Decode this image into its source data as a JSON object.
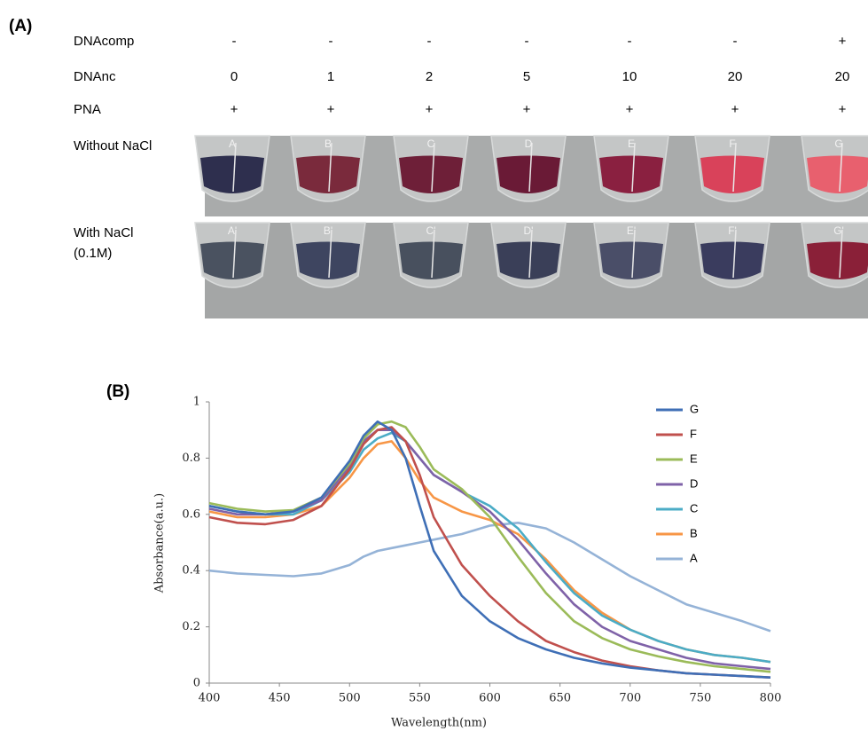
{
  "panel_a": {
    "label": "(A)",
    "rows": [
      {
        "name": "DNAcomp",
        "values": [
          "-",
          "-",
          "-",
          "-",
          "-",
          "-",
          "+"
        ]
      },
      {
        "name": "DNAnc",
        "values": [
          0,
          1,
          2,
          5,
          10,
          20,
          20
        ]
      },
      {
        "name": "PNA",
        "values": [
          "+",
          "+",
          "+",
          "+",
          "+",
          "+",
          "+"
        ]
      }
    ],
    "photo_rows": [
      {
        "lines": [
          "Without NaCl"
        ],
        "tubes": [
          "A",
          "B",
          "C",
          "D",
          "E",
          "F",
          "G"
        ],
        "colors": [
          "#2e2f4e",
          "#7a2a3c",
          "#6e1f38",
          "#6a1a36",
          "#8a2040",
          "#d9425a",
          "#e8606e"
        ]
      },
      {
        "lines": [
          "With NaCl",
          "(0.1M)"
        ],
        "tubes": [
          "A'",
          "B'",
          "C'",
          "D'",
          "E'",
          "F'",
          "G'"
        ],
        "colors": [
          "#4a5260",
          "#3e4560",
          "#48505e",
          "#3a3f58",
          "#4a4e68",
          "#3a3c5e",
          "#8a2038"
        ]
      }
    ]
  },
  "chart_data": {
    "type": "line",
    "label": "(B)",
    "xlabel": "Wavelength(nm)",
    "ylabel": "Absorbance(a.u.)",
    "x": [
      400,
      420,
      440,
      460,
      480,
      500,
      510,
      520,
      530,
      540,
      550,
      560,
      580,
      600,
      620,
      640,
      660,
      680,
      700,
      720,
      740,
      760,
      780,
      800
    ],
    "xlim": [
      400,
      800
    ],
    "xticks": [
      400,
      450,
      500,
      550,
      600,
      650,
      700,
      750,
      800
    ],
    "ylim": [
      0,
      1
    ],
    "yticks": [
      0,
      0.2,
      0.4,
      0.6,
      0.8,
      1
    ],
    "grid": false,
    "legend": "upper right",
    "series": [
      {
        "name": "G",
        "color": "#3f6fb6",
        "values": [
          0.63,
          0.61,
          0.6,
          0.61,
          0.66,
          0.79,
          0.88,
          0.93,
          0.9,
          0.8,
          0.63,
          0.47,
          0.31,
          0.22,
          0.16,
          0.12,
          0.09,
          0.07,
          0.055,
          0.045,
          0.035,
          0.03,
          0.025,
          0.02
        ]
      },
      {
        "name": "F",
        "color": "#c0504d",
        "values": [
          0.59,
          0.57,
          0.565,
          0.58,
          0.63,
          0.76,
          0.85,
          0.9,
          0.91,
          0.86,
          0.74,
          0.59,
          0.42,
          0.31,
          0.22,
          0.15,
          0.11,
          0.08,
          0.06,
          0.045,
          0.035,
          0.03,
          0.025,
          0.02
        ]
      },
      {
        "name": "E",
        "color": "#9bbb59",
        "values": [
          0.64,
          0.62,
          0.61,
          0.615,
          0.66,
          0.78,
          0.87,
          0.92,
          0.93,
          0.91,
          0.84,
          0.76,
          0.69,
          0.59,
          0.45,
          0.32,
          0.22,
          0.16,
          0.12,
          0.095,
          0.075,
          0.06,
          0.05,
          0.04
        ]
      },
      {
        "name": "D",
        "color": "#7f62a8",
        "values": [
          0.62,
          0.6,
          0.6,
          0.61,
          0.65,
          0.77,
          0.86,
          0.9,
          0.9,
          0.86,
          0.8,
          0.74,
          0.68,
          0.61,
          0.51,
          0.39,
          0.28,
          0.2,
          0.15,
          0.12,
          0.09,
          0.07,
          0.06,
          0.05
        ]
      },
      {
        "name": "C",
        "color": "#4bacc6",
        "values": [
          0.63,
          0.61,
          0.6,
          0.6,
          0.65,
          0.75,
          0.83,
          0.87,
          0.89,
          0.86,
          0.8,
          0.74,
          0.68,
          0.63,
          0.55,
          0.43,
          0.32,
          0.24,
          0.19,
          0.15,
          0.12,
          0.1,
          0.09,
          0.075
        ]
      },
      {
        "name": "B",
        "color": "#f79646",
        "values": [
          0.61,
          0.59,
          0.59,
          0.6,
          0.63,
          0.73,
          0.8,
          0.85,
          0.86,
          0.8,
          0.72,
          0.66,
          0.61,
          0.58,
          0.53,
          0.44,
          0.33,
          0.25,
          0.19,
          0.15,
          0.12,
          0.1,
          0.09,
          0.075
        ]
      },
      {
        "name": "A",
        "color": "#95b3d7",
        "values": [
          0.4,
          0.39,
          0.385,
          0.38,
          0.39,
          0.42,
          0.45,
          0.47,
          0.48,
          0.49,
          0.5,
          0.51,
          0.53,
          0.56,
          0.57,
          0.55,
          0.5,
          0.44,
          0.38,
          0.33,
          0.28,
          0.25,
          0.22,
          0.185
        ]
      }
    ]
  }
}
